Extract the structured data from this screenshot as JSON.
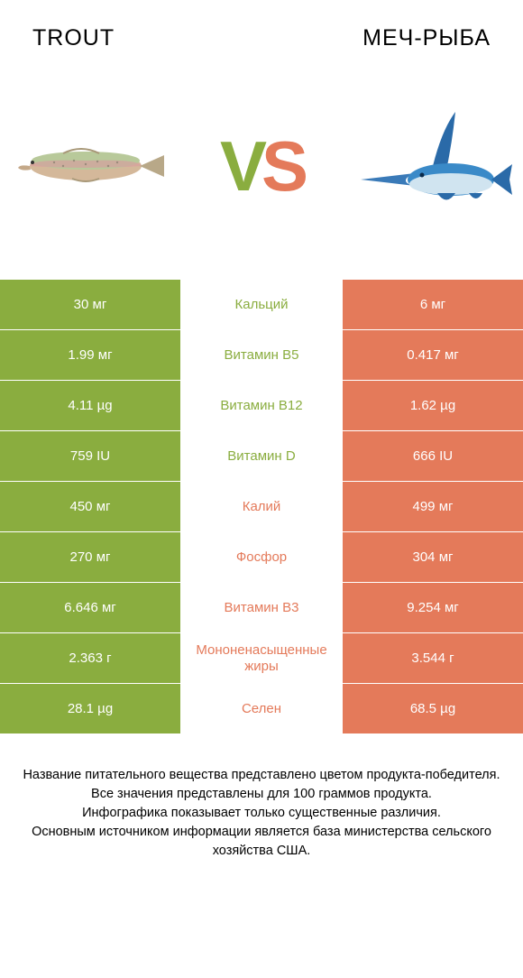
{
  "colors": {
    "left_bg": "#8aad3f",
    "right_bg": "#e47a5a",
    "mid_bg": "#ffffff",
    "left_text": "#8aad3f",
    "right_text": "#e47a5a",
    "row_border": "#ffffff"
  },
  "header": {
    "left": "TROUT",
    "right": "МЕЧ-РЫБА"
  },
  "vs": {
    "v": "V",
    "s": "S"
  },
  "rows": [
    {
      "left": "30 мг",
      "mid": "Кальций",
      "right": "6 мг",
      "winner": "left"
    },
    {
      "left": "1.99 мг",
      "mid": "Витамин B5",
      "right": "0.417 мг",
      "winner": "left"
    },
    {
      "left": "4.11 µg",
      "mid": "Витамин B12",
      "right": "1.62 µg",
      "winner": "left"
    },
    {
      "left": "759 IU",
      "mid": "Витамин D",
      "right": "666 IU",
      "winner": "left"
    },
    {
      "left": "450 мг",
      "mid": "Калий",
      "right": "499 мг",
      "winner": "right"
    },
    {
      "left": "270 мг",
      "mid": "Фосфор",
      "right": "304 мг",
      "winner": "right"
    },
    {
      "left": "6.646 мг",
      "mid": "Витамин B3",
      "right": "9.254 мг",
      "winner": "right"
    },
    {
      "left": "2.363 г",
      "mid": "Мононенасыщенные жиры",
      "right": "3.544 г",
      "winner": "right"
    },
    {
      "left": "28.1 µg",
      "mid": "Селен",
      "right": "68.5 µg",
      "winner": "right"
    }
  ],
  "footer": "Название питательного вещества представлено цветом продукта-победителя.\nВсе значения представлены для 100 граммов продукта.\nИнфографика показывает только существенные различия.\nОсновным источником информации является база министерства сельского хозяйства США."
}
